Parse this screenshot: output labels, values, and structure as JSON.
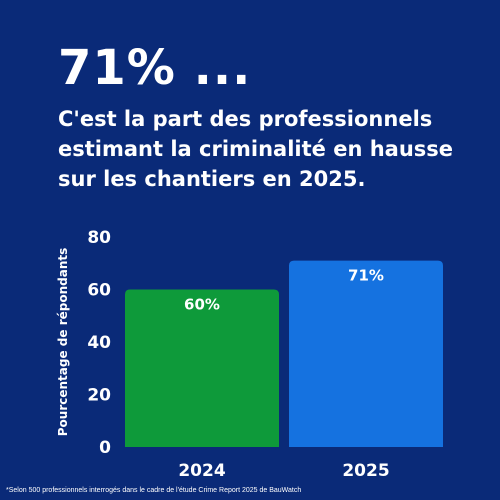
{
  "headline": "71% ...",
  "subtitle_lines": [
    "C'est la part des professionnels",
    "estimant la criminalité en hausse",
    "sur les chantiers en 2025."
  ],
  "footnote": "*Selon 500 professionnels interrogés dans le cadre de l'étude Crime Report 2025 de BauWatch",
  "colors": {
    "background": "#0a2a78",
    "text": "#ffffff",
    "bar_2024": "#0e9a3a",
    "bar_2025": "#1572e0"
  },
  "chart_data": {
    "type": "bar",
    "categories": [
      "2024",
      "2025"
    ],
    "values": [
      60,
      71
    ],
    "value_labels": [
      "60%",
      "71%"
    ],
    "ylabel": "Pourcentage de répondants",
    "ylim": [
      0,
      80
    ],
    "yticks": [
      0,
      20,
      40,
      60,
      80
    ],
    "grid": false,
    "legend": "none"
  }
}
